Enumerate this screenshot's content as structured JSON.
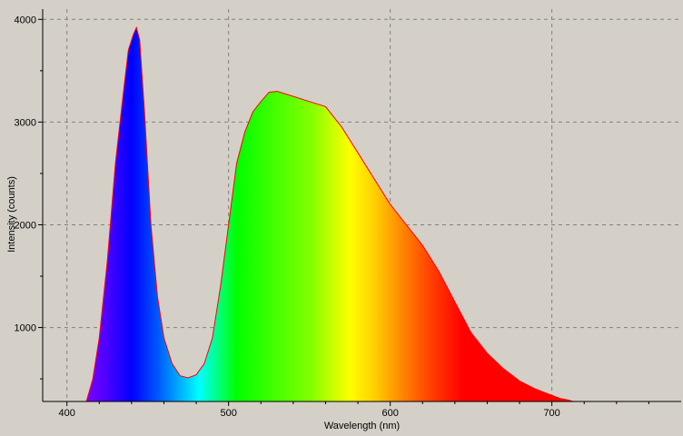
{
  "chart_data": {
    "type": "area",
    "xlabel": "Wavelength (nm)",
    "ylabel": "Intensity (counts)",
    "xlim": [
      385,
      780
    ],
    "ylim": [
      280,
      4100
    ],
    "x_ticks": [
      400,
      500,
      600,
      700
    ],
    "y_ticks": [
      1000,
      2000,
      3000,
      4000
    ],
    "grid": true,
    "fill": "spectral-rainbow",
    "line_color": "#ff0000",
    "series": [
      {
        "x": [
          412,
          416,
          420,
          425,
          430,
          435,
          438,
          441,
          443,
          445,
          448,
          452,
          456,
          460,
          465,
          470,
          475,
          480,
          485,
          490,
          495,
          500,
          505,
          510,
          515,
          520,
          525,
          530,
          540,
          550,
          560,
          570,
          580,
          590,
          600,
          610,
          620,
          630,
          640,
          650,
          660,
          670,
          680,
          690,
          700,
          705,
          710,
          713
        ],
        "y": [
          280,
          500,
          900,
          1650,
          2600,
          3300,
          3700,
          3850,
          3920,
          3800,
          3100,
          2000,
          1300,
          900,
          650,
          530,
          510,
          540,
          650,
          900,
          1400,
          2000,
          2600,
          2900,
          3100,
          3200,
          3290,
          3300,
          3250,
          3200,
          3150,
          2950,
          2700,
          2450,
          2200,
          2000,
          1800,
          1550,
          1250,
          950,
          750,
          600,
          480,
          400,
          340,
          310,
          295,
          280
        ]
      }
    ]
  }
}
